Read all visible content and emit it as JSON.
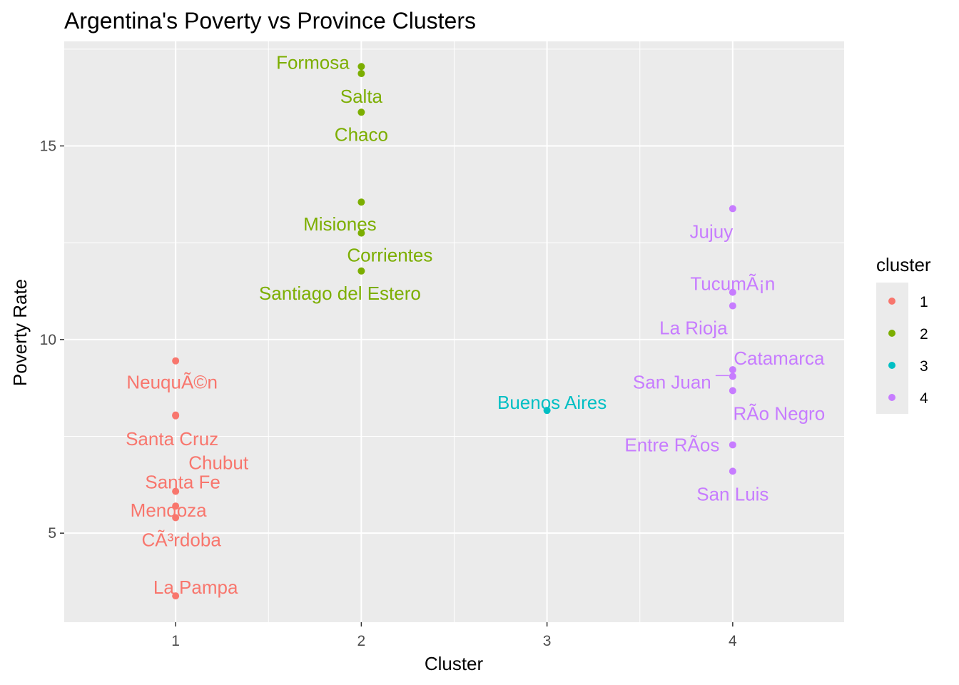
{
  "chart_data": {
    "type": "scatter",
    "title": "Argentina's Poverty vs Province Clusters",
    "xlabel": "Cluster",
    "ylabel": "Poverty Rate",
    "xlim": [
      0.4,
      4.6
    ],
    "ylim": [
      2.7,
      17.7
    ],
    "x_ticks": [
      1,
      2,
      3,
      4
    ],
    "y_ticks": [
      5,
      10,
      15
    ],
    "x_minor": [
      1.5,
      2.5,
      3.5
    ],
    "y_minor": [
      7.5,
      12.5,
      17.5
    ],
    "grid": true,
    "legend": {
      "title": "cluster",
      "position": "right"
    },
    "series": [
      {
        "name": "1",
        "color": "#F8766D",
        "points": [
          {
            "x": 1,
            "y": 9.45,
            "label": "NeuquÃ©n"
          },
          {
            "x": 1,
            "y": 8.05,
            "label": "Chubut"
          },
          {
            "x": 1,
            "y": 8.03,
            "label": "Santa Cruz"
          },
          {
            "x": 1,
            "y": 6.08,
            "label": "Santa Fe"
          },
          {
            "x": 1,
            "y": 5.7,
            "label": "Mendoza"
          },
          {
            "x": 1,
            "y": 5.4,
            "label": "CÃ³rdoba"
          },
          {
            "x": 1,
            "y": 3.38,
            "label": "La Pampa"
          }
        ]
      },
      {
        "name": "2",
        "color": "#7CAE00",
        "points": [
          {
            "x": 2,
            "y": 17.05,
            "label": "Formosa"
          },
          {
            "x": 2,
            "y": 16.87,
            "label": "Salta"
          },
          {
            "x": 2,
            "y": 15.87,
            "label": "Chaco"
          },
          {
            "x": 2,
            "y": 13.55,
            "label": "Misiones"
          },
          {
            "x": 2,
            "y": 12.75,
            "label": "Corrientes"
          },
          {
            "x": 2,
            "y": 11.77,
            "label": "Santiago del Estero"
          }
        ]
      },
      {
        "name": "3",
        "color": "#00BFC4",
        "points": [
          {
            "x": 3,
            "y": 8.17,
            "label": "Buenos Aires"
          }
        ]
      },
      {
        "name": "4",
        "color": "#C77CFF",
        "points": [
          {
            "x": 4,
            "y": 13.38,
            "label": "Jujuy"
          },
          {
            "x": 4,
            "y": 11.22,
            "label": "TucumÃ¡n"
          },
          {
            "x": 4,
            "y": 10.87,
            "label": "La Rioja"
          },
          {
            "x": 4,
            "y": 9.22,
            "label": "Catamarca"
          },
          {
            "x": 4,
            "y": 9.05,
            "label": "San Juan"
          },
          {
            "x": 4,
            "y": 8.68,
            "label": "RÃ­o Negro"
          },
          {
            "x": 4,
            "y": 7.28,
            "label": "Entre RÃ­os"
          },
          {
            "x": 4,
            "y": 6.6,
            "label": "San Luis"
          }
        ]
      }
    ]
  }
}
